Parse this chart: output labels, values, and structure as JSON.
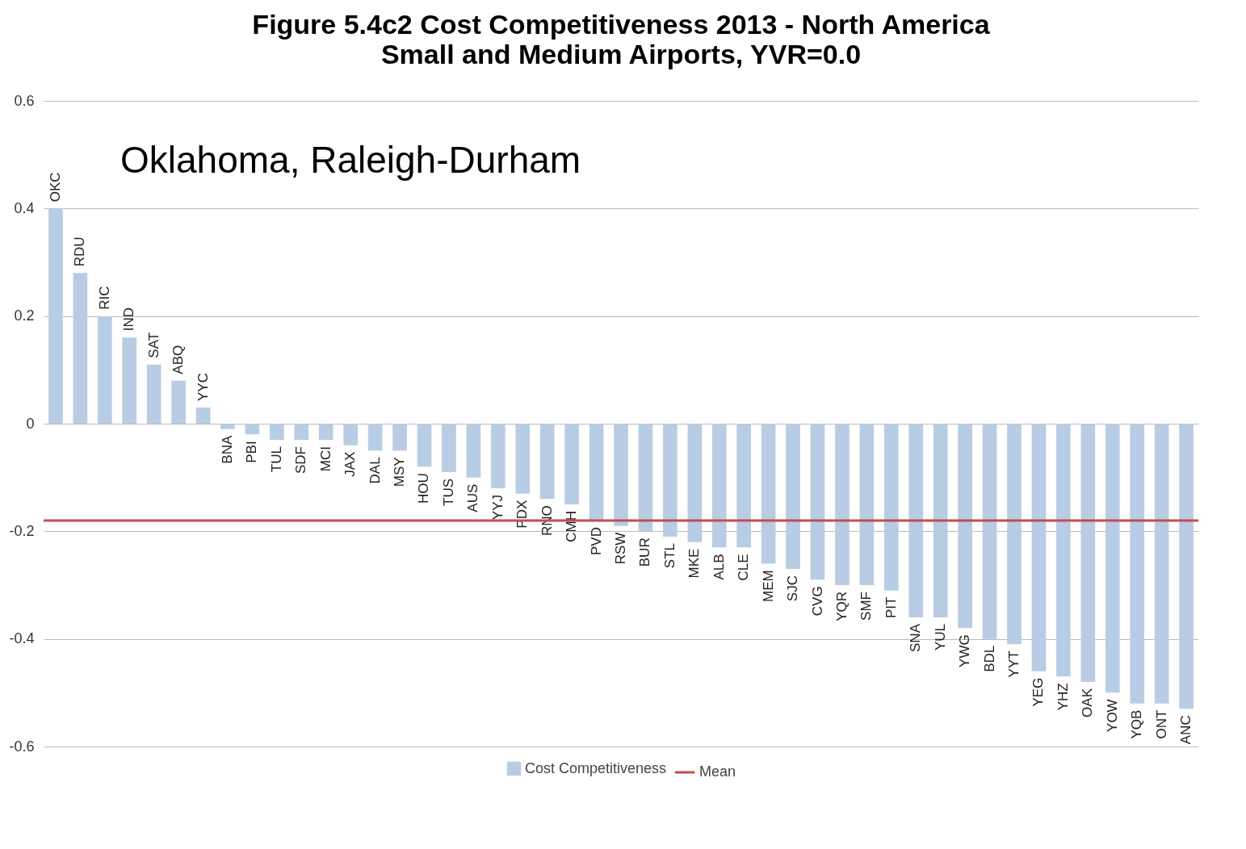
{
  "chart_data": {
    "type": "bar",
    "title": "Figure 5.4c2 Cost Competitiveness 2013 - North America",
    "subtitle": "Small and Medium Airports, YVR=0.0",
    "categories": [
      "OKC",
      "RDU",
      "RIC",
      "IND",
      "SAT",
      "ABQ",
      "YYC",
      "BNA",
      "PBI",
      "TUL",
      "SDF",
      "MCI",
      "JAX",
      "DAL",
      "MSY",
      "HOU",
      "TUS",
      "AUS",
      "YYJ",
      "PDX",
      "RNO",
      "CMH",
      "PVD",
      "RSW",
      "BUR",
      "STL",
      "MKE",
      "ALB",
      "CLE",
      "MEM",
      "SJC",
      "CVG",
      "YQR",
      "SMF",
      "PIT",
      "SNA",
      "YUL",
      "YWG",
      "BDL",
      "YYT",
      "YEG",
      "YHZ",
      "OAK",
      "YOW",
      "YQB",
      "ONT",
      "ANC"
    ],
    "series": [
      {
        "name": "Cost Competitiveness",
        "color": "#b8cce4",
        "values": [
          0.4,
          0.28,
          0.2,
          0.16,
          0.11,
          0.08,
          0.03,
          -0.01,
          -0.02,
          -0.03,
          -0.03,
          -0.03,
          -0.04,
          -0.05,
          -0.05,
          -0.08,
          -0.09,
          -0.1,
          -0.12,
          -0.13,
          -0.14,
          -0.15,
          -0.18,
          -0.19,
          -0.2,
          -0.21,
          -0.22,
          -0.23,
          -0.23,
          -0.26,
          -0.27,
          -0.29,
          -0.3,
          -0.3,
          -0.31,
          -0.36,
          -0.36,
          -0.38,
          -0.4,
          -0.41,
          -0.46,
          -0.47,
          -0.48,
          -0.5,
          -0.52,
          -0.52,
          -0.53
        ]
      }
    ],
    "ref_lines": [
      {
        "axis": "y",
        "value": -0.18,
        "label": "Mean",
        "color": "#c0504d"
      }
    ],
    "annotations": [
      "Oklahoma, Raleigh-Durham"
    ],
    "ylim": [
      -0.6,
      0.6
    ],
    "yticks": [
      -0.6,
      -0.4,
      -0.2,
      0,
      0.2,
      0.4,
      0.6
    ],
    "grid": "y",
    "legend": "bottom",
    "tick_labels": "y"
  }
}
